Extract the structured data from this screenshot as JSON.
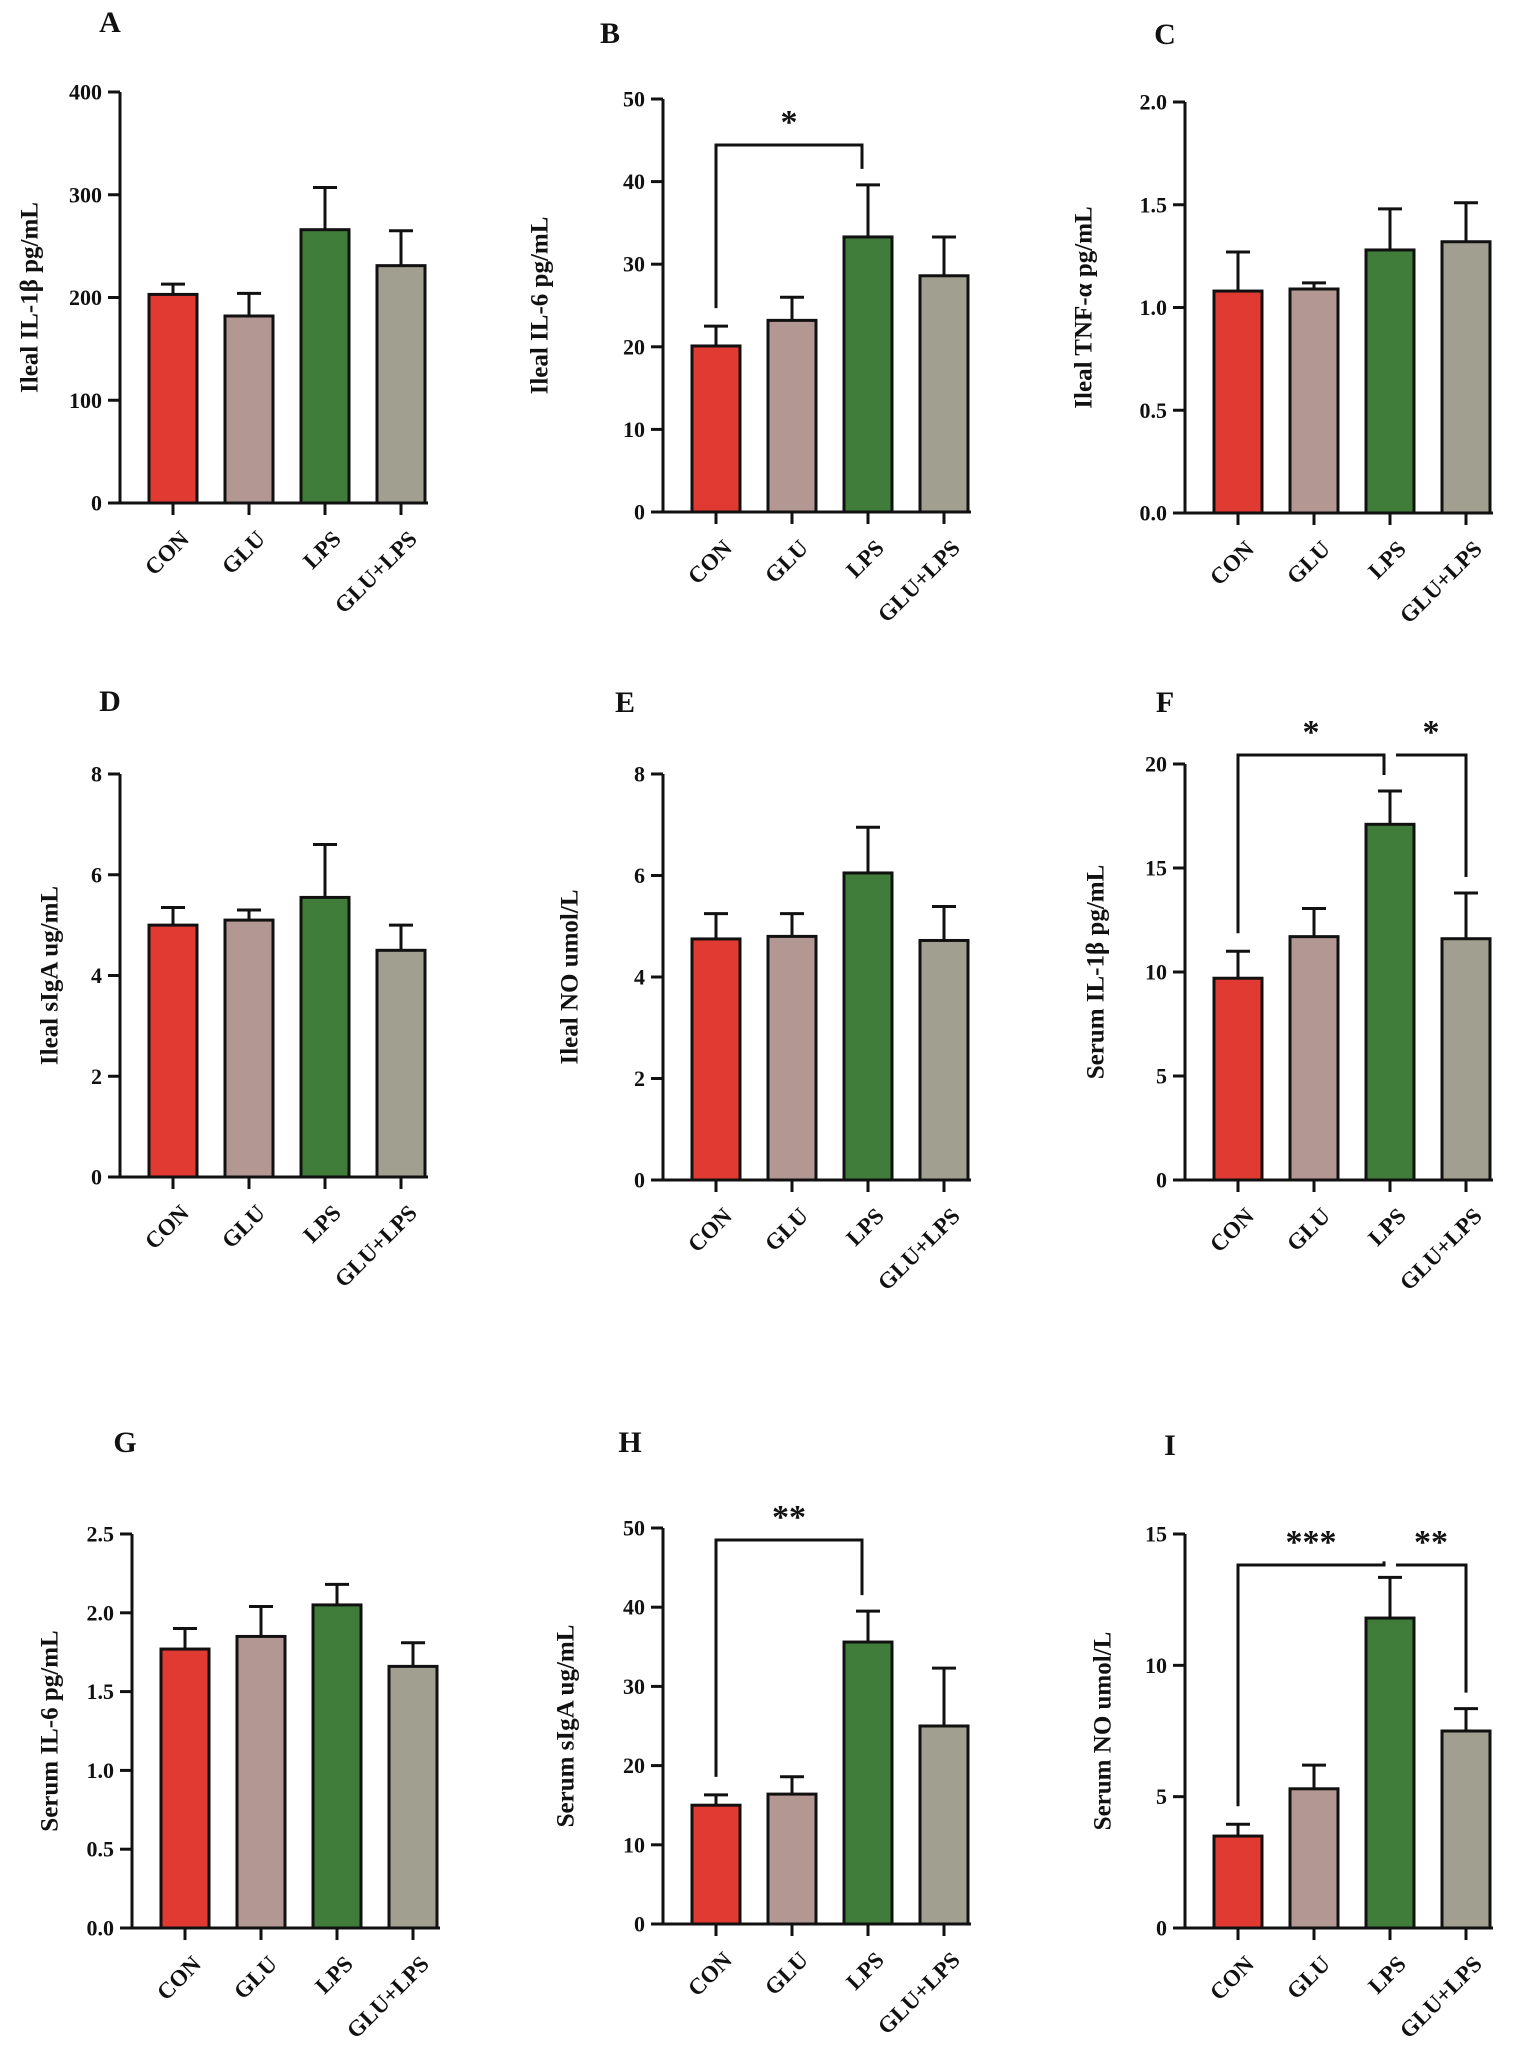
{
  "figure": {
    "colors": {
      "CON": "#e13a32",
      "GLU": "#b39792",
      "LPS": "#417d3a",
      "GLU+LPS": "#a09f90",
      "axis": "#111111"
    }
  },
  "chart_data": [
    {
      "panel": "A",
      "type": "bar",
      "ylabel": "Ileal IL-1β pg/mL",
      "categories": [
        "CON",
        "GLU",
        "LPS",
        "GLU+LPS"
      ],
      "values": [
        203,
        182,
        266,
        231
      ],
      "errors": [
        10,
        22,
        41,
        34
      ],
      "ylim": [
        0,
        400
      ],
      "yticks": [
        "0",
        "100",
        "200",
        "300",
        "400"
      ],
      "significance": []
    },
    {
      "panel": "B",
      "type": "bar",
      "ylabel": "Ileal IL-6 pg/mL",
      "categories": [
        "CON",
        "GLU",
        "LPS",
        "GLU+LPS"
      ],
      "values": [
        20.1,
        23.2,
        33.3,
        28.6
      ],
      "errors": [
        2.4,
        2.8,
        6.3,
        4.7
      ],
      "ylim": [
        0,
        50
      ],
      "yticks": [
        "0",
        "10",
        "20",
        "30",
        "40",
        "50"
      ],
      "significance": [
        {
          "from": 0,
          "to": 2,
          "label": "*"
        }
      ]
    },
    {
      "panel": "C",
      "type": "bar",
      "ylabel": "Ileal TNF-α pg/mL",
      "categories": [
        "CON",
        "GLU",
        "LPS",
        "GLU+LPS"
      ],
      "values": [
        1.08,
        1.09,
        1.28,
        1.32
      ],
      "errors": [
        0.19,
        0.03,
        0.2,
        0.19
      ],
      "ylim": [
        0,
        2.0
      ],
      "yticks": [
        "0.0",
        "0.5",
        "1.0",
        "1.5",
        "2.0"
      ],
      "significance": []
    },
    {
      "panel": "D",
      "type": "bar",
      "ylabel": "Ileal sIgA ug/mL",
      "categories": [
        "CON",
        "GLU",
        "LPS",
        "GLU+LPS"
      ],
      "values": [
        5.0,
        5.1,
        5.55,
        4.5
      ],
      "errors": [
        0.35,
        0.2,
        1.05,
        0.5
      ],
      "ylim": [
        0,
        8
      ],
      "yticks": [
        "0",
        "2",
        "4",
        "6",
        "8"
      ],
      "significance": []
    },
    {
      "panel": "E",
      "type": "bar",
      "ylabel": "Ileal NO umol/L",
      "categories": [
        "CON",
        "GLU",
        "LPS",
        "GLU+LPS"
      ],
      "values": [
        4.75,
        4.8,
        6.05,
        4.72
      ],
      "errors": [
        0.5,
        0.45,
        0.9,
        0.67
      ],
      "ylim": [
        0,
        8
      ],
      "yticks": [
        "0",
        "2",
        "4",
        "6",
        "8"
      ],
      "significance": []
    },
    {
      "panel": "F",
      "type": "bar",
      "ylabel": "Serum IL-1β pg/mL",
      "categories": [
        "CON",
        "GLU",
        "LPS",
        "GLU+LPS"
      ],
      "values": [
        9.7,
        11.7,
        17.1,
        11.6
      ],
      "errors": [
        1.3,
        1.35,
        1.6,
        2.2
      ],
      "ylim": [
        0,
        20
      ],
      "yticks": [
        "0",
        "5",
        "10",
        "15",
        "20"
      ],
      "significance": [
        {
          "from": 0,
          "to": 2,
          "label": "*"
        },
        {
          "from": 2,
          "to": 3,
          "label": "*"
        }
      ]
    },
    {
      "panel": "G",
      "type": "bar",
      "ylabel": "Serum IL-6 pg/mL",
      "categories": [
        "CON",
        "GLU",
        "LPS",
        "GLU+LPS"
      ],
      "values": [
        1.77,
        1.85,
        2.05,
        1.66
      ],
      "errors": [
        0.13,
        0.19,
        0.13,
        0.15
      ],
      "ylim": [
        0,
        2.5
      ],
      "yticks": [
        "0.0",
        "0.5",
        "1.0",
        "1.5",
        "2.0",
        "2.5"
      ],
      "significance": []
    },
    {
      "panel": "H",
      "type": "bar",
      "ylabel": "Serum sIgA ug/mL",
      "categories": [
        "CON",
        "GLU",
        "LPS",
        "GLU+LPS"
      ],
      "values": [
        15.0,
        16.4,
        35.6,
        25.0
      ],
      "errors": [
        1.3,
        2.2,
        3.9,
        7.3
      ],
      "ylim": [
        0,
        50
      ],
      "yticks": [
        "0",
        "10",
        "20",
        "30",
        "40",
        "50"
      ],
      "significance": [
        {
          "from": 0,
          "to": 2,
          "label": "**"
        }
      ]
    },
    {
      "panel": "I",
      "type": "bar",
      "ylabel": "Serum NO umol/L",
      "categories": [
        "CON",
        "GLU",
        "LPS",
        "GLU+LPS"
      ],
      "values": [
        3.5,
        5.3,
        11.8,
        7.5
      ],
      "errors": [
        0.45,
        0.9,
        1.55,
        0.85
      ],
      "ylim": [
        0,
        15
      ],
      "yticks": [
        "0",
        "5",
        "10",
        "15"
      ],
      "significance": [
        {
          "from": 0,
          "to": 2,
          "label": "***"
        },
        {
          "from": 2,
          "to": 3,
          "label": "**"
        }
      ]
    }
  ]
}
